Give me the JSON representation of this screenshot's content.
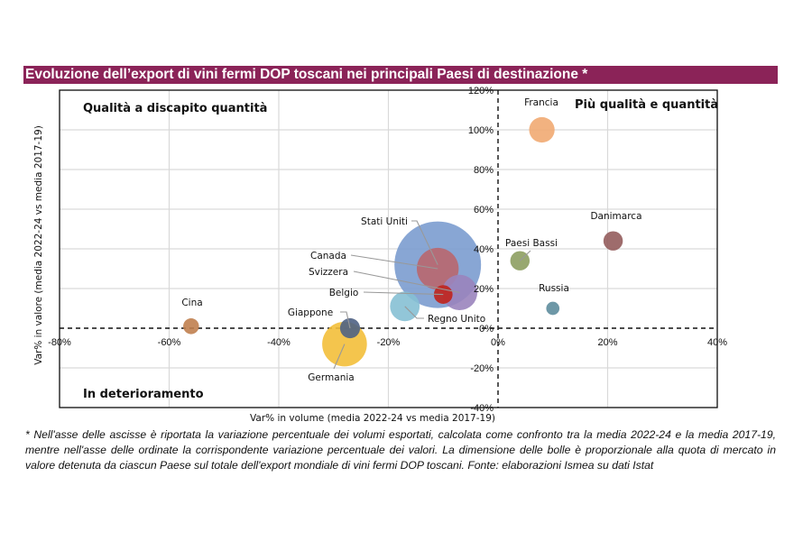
{
  "title": "Evoluzione dell’export di vini fermi DOP toscani nei principali Paesi di destinazione *",
  "note": "* Nell'asse delle ascisse è riportata la variazione percentuale dei volumi esportati, calcolata come confronto tra la media 2022-24 e la media 2017-19, mentre nell'asse delle ordinate la corrispondente variazione percentuale dei valori. La dimensione delle bolle è proporzionale alla quota di mercato in valore detenuta da ciascun Paese sul totale dell'export mondiale di vini fermi DOP toscani. Fonte: elaborazioni Ismea su dati Istat",
  "chart_data": {
    "type": "scatter",
    "subtype": "bubble",
    "title": "Evoluzione dell’export di vini fermi DOP toscani nei principali Paesi di destinazione *",
    "xlabel": "Var% in volume (media 2022-24 vs media 2017-19)",
    "ylabel": "Var% in valore (media 2022-24 vs media 2017-19)",
    "xlim": [
      -80,
      40
    ],
    "ylim": [
      -40,
      120
    ],
    "x_ticks": [
      "-80%",
      "-60%",
      "-40%",
      "-20%",
      "0%",
      "20%",
      "40%"
    ],
    "y_ticks": [
      "-40%",
      "-20%",
      "0%",
      "20%",
      "40%",
      "60%",
      "80%",
      "100%",
      "120%"
    ],
    "x_tick_values": [
      -80,
      -60,
      -40,
      -20,
      0,
      20,
      40
    ],
    "y_tick_values": [
      -40,
      -20,
      0,
      20,
      40,
      60,
      80,
      100,
      120
    ],
    "grid": true,
    "reference_lines": {
      "x": 0,
      "y": 0,
      "style": "dashed"
    },
    "quadrant_labels": {
      "top_left": "Qualità a discapito quantità",
      "top_right": "Più qualità e quantità",
      "bottom_left": "In deterioramento"
    },
    "points": [
      {
        "name": "Stati Uniti",
        "x": -11,
        "y": 32,
        "size": 30,
        "color": "#7b9ccf"
      },
      {
        "name": "Canada",
        "x": -11,
        "y": 30,
        "size": 7,
        "color": "#b9676e"
      },
      {
        "name": "Svizzera",
        "x": -7,
        "y": 18,
        "size": 5,
        "color": "#9a84bd"
      },
      {
        "name": "Belgio",
        "x": -10,
        "y": 17,
        "size": 1.4,
        "color": "#c0241c"
      },
      {
        "name": "Regno Unito",
        "x": -17,
        "y": 11,
        "size": 3.5,
        "color": "#86c0d4"
      },
      {
        "name": "Germania",
        "x": -28,
        "y": -8,
        "size": 8,
        "color": "#f3bf3a"
      },
      {
        "name": "Giappone",
        "x": -27,
        "y": 0,
        "size": 1.6,
        "color": "#4f6284"
      },
      {
        "name": "Cina",
        "x": -56,
        "y": 1,
        "size": 1,
        "color": "#c0804f"
      },
      {
        "name": "Francia",
        "x": 8,
        "y": 100,
        "size": 2.6,
        "color": "#f1aa72"
      },
      {
        "name": "Danimarca",
        "x": 21,
        "y": 44,
        "size": 1.5,
        "color": "#935c5c"
      },
      {
        "name": "Paesi Bassi",
        "x": 4,
        "y": 34,
        "size": 1.5,
        "color": "#8d9e61"
      },
      {
        "name": "Russia",
        "x": 10,
        "y": 10,
        "size": 0.7,
        "color": "#5e8d9d"
      }
    ]
  }
}
